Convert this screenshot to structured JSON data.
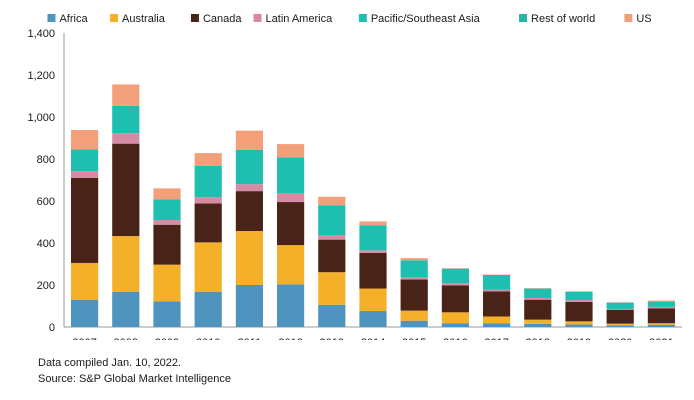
{
  "chart_data": {
    "type": "bar",
    "stacked": true,
    "title": "",
    "xlabel": "",
    "ylabel": "",
    "ylim": [
      0,
      1400
    ],
    "yticks": [
      0,
      200,
      400,
      600,
      800,
      1000,
      1200,
      1400
    ],
    "ytick_labels": [
      "0",
      "200",
      "400",
      "600",
      "800",
      "1,000",
      "1,200",
      "1,400"
    ],
    "grid": false,
    "legend_position": "top",
    "categories": [
      "2007",
      "2008",
      "2009",
      "2010",
      "2011",
      "2012",
      "2013",
      "2014",
      "2015",
      "2016",
      "2017",
      "2018",
      "2019",
      "2020",
      "2021"
    ],
    "series": [
      {
        "name": "Africa",
        "color": "#4e94bf",
        "values": [
          130,
          168,
          122,
          168,
          200,
          203,
          106,
          76,
          30,
          18,
          18,
          15,
          12,
          8,
          10
        ]
      },
      {
        "name": "Australia",
        "color": "#f5b02a",
        "values": [
          175,
          265,
          175,
          235,
          257,
          187,
          155,
          107,
          48,
          52,
          32,
          20,
          15,
          8,
          8
        ]
      },
      {
        "name": "Canada",
        "color": "#4a2318",
        "values": [
          405,
          440,
          190,
          185,
          190,
          205,
          155,
          170,
          148,
          128,
          120,
          95,
          93,
          65,
          70
        ]
      },
      {
        "name": "Latin America",
        "color": "#d48ba3",
        "values": [
          32,
          50,
          22,
          30,
          33,
          43,
          22,
          12,
          12,
          10,
          8,
          8,
          8,
          5,
          8
        ]
      },
      {
        "name": "Pacific/Southeast Asia",
        "color": "#1ebfb0",
        "values": [
          103,
          130,
          98,
          150,
          163,
          170,
          142,
          120,
          80,
          70,
          70,
          45,
          40,
          30,
          25
        ]
      },
      {
        "name": "Rest of world",
        "color": "#2bb5a2",
        "values": [
          0,
          0,
          0,
          0,
          0,
          0,
          0,
          0,
          0,
          0,
          0,
          0,
          0,
          0,
          0
        ]
      },
      {
        "name": "US",
        "color": "#f3a07a",
        "values": [
          93,
          102,
          53,
          60,
          92,
          63,
          40,
          18,
          10,
          2,
          2,
          2,
          2,
          2,
          5
        ]
      }
    ]
  },
  "notes": {
    "line1": "Data compiled Jan. 10, 2022.",
    "line2": "Source: S&P Global Market Intelligence"
  }
}
